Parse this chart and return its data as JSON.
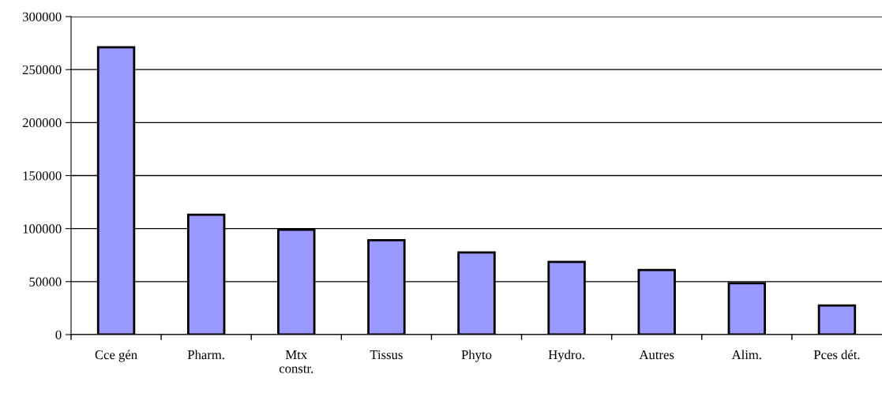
{
  "chart_data": {
    "type": "bar",
    "categories": [
      "Cce gén",
      "Pharm.",
      "Mtx\nconstr.",
      "Tissus",
      "Phyto",
      "Hydro.",
      "Autres",
      "Alim.",
      "Pces dét."
    ],
    "values": [
      271000,
      113000,
      99000,
      89000,
      77500,
      68500,
      61000,
      48500,
      27500
    ],
    "color": "#9999ff",
    "ylim": [
      0,
      300000
    ],
    "yticks": [
      0,
      50000,
      100000,
      150000,
      200000,
      250000,
      300000
    ],
    "grid": "y"
  }
}
